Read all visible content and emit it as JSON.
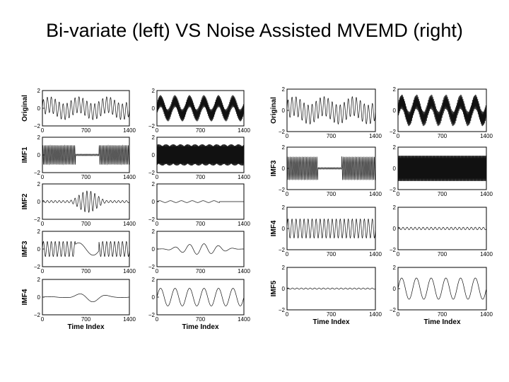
{
  "title": "Bi-variate (left) VS Noise Assisted MVEMD (right)",
  "colors": {
    "trace": "#111111",
    "axis": "#000000",
    "background": "#ffffff"
  },
  "chart_data": [
    {
      "type": "line",
      "name": "bivariate-emd",
      "xlabel": "Time Index",
      "xlim": [
        0,
        1400
      ],
      "ylim": [
        -2,
        2
      ],
      "xticks": [
        "0",
        "700",
        "1400"
      ],
      "yticks": [
        "2",
        "0",
        "−2"
      ],
      "grid": false,
      "rows": [
        {
          "label": "Original",
          "left": {
            "components": [
              {
                "amp": 0.9,
                "cycles": 22
              },
              {
                "amp": 0.4,
                "cycles": 3
              }
            ]
          },
          "right": {
            "components": [
              {
                "amp": 0.7,
                "cycles": 120
              },
              {
                "amp": 0.8,
                "cycles": 6
              }
            ]
          }
        },
        {
          "label": "IMF1",
          "left": {
            "components": [
              {
                "amp": 1.1,
                "cycles": 60,
                "window": [
                  0,
                  0.38
                ]
              },
              {
                "amp": 0.1,
                "cycles": 60,
                "window": [
                  0.38,
                  0.65
                ]
              },
              {
                "amp": 1.1,
                "cycles": 60,
                "window": [
                  0.65,
                  1
                ]
              }
            ]
          },
          "right": {
            "components": [
              {
                "amp": 1.2,
                "cycles": 150
              }
            ]
          }
        },
        {
          "label": "IMF2",
          "left": {
            "components": [
              {
                "amp": 1.1,
                "cycles": 22,
                "window": [
                  0.3,
                  0.75
                ],
                "taper": true
              },
              {
                "amp": 0.12,
                "cycles": 22
              }
            ]
          },
          "right": {
            "components": [
              {
                "amp": 0.1,
                "cycles": 8,
                "window": [
                  0,
                  0.72
                ]
              }
            ]
          }
        },
        {
          "label": "IMF3",
          "left": {
            "components": [
              {
                "amp": 0.85,
                "cycles": 22,
                "window": [
                  0,
                  0.38
                ]
              },
              {
                "amp": 0.7,
                "cycles": 3,
                "window": [
                  0.38,
                  0.65
                ]
              },
              {
                "amp": 0.85,
                "cycles": 22,
                "window": [
                  0.65,
                  1
                ]
              }
            ]
          },
          "right": {
            "components": [
              {
                "amp": 0.6,
                "cycles": 6,
                "taper": true
              }
            ]
          }
        },
        {
          "label": "IMF4",
          "left": {
            "components": [
              {
                "amp": 0.5,
                "cycles": 3,
                "window": [
                  0.25,
                  0.85
                ],
                "taper": true
              },
              {
                "amp": 0.05,
                "cycles": 3
              }
            ]
          },
          "right": {
            "components": [
              {
                "amp": 1.0,
                "cycles": 6
              }
            ]
          }
        }
      ]
    },
    {
      "type": "line",
      "name": "noise-assisted-mvemd",
      "xlabel": "Time Index",
      "xlim": [
        0,
        1400
      ],
      "ylim": [
        -2,
        2
      ],
      "xticks": [
        "0",
        "700",
        "1400"
      ],
      "yticks": [
        "2",
        "0",
        "−2"
      ],
      "grid": false,
      "rows": [
        {
          "label": "Original",
          "left": {
            "components": [
              {
                "amp": 0.9,
                "cycles": 22
              },
              {
                "amp": 0.4,
                "cycles": 3
              }
            ]
          },
          "right": {
            "components": [
              {
                "amp": 0.7,
                "cycles": 120
              },
              {
                "amp": 0.8,
                "cycles": 6
              }
            ]
          }
        },
        {
          "label": "IMF3",
          "left": {
            "components": [
              {
                "amp": 1.1,
                "cycles": 60,
                "window": [
                  0,
                  0.35
                ]
              },
              {
                "amp": 0.08,
                "cycles": 60,
                "window": [
                  0.35,
                  0.62
                ]
              },
              {
                "amp": 1.1,
                "cycles": 60,
                "window": [
                  0.62,
                  1
                ]
              }
            ]
          },
          "right": {
            "components": [
              {
                "amp": 1.25,
                "cycles": 150
              }
            ]
          }
        },
        {
          "label": "IMF4",
          "left": {
            "components": [
              {
                "amp": 0.9,
                "cycles": 22
              }
            ]
          },
          "right": {
            "components": [
              {
                "amp": 0.12,
                "cycles": 22
              }
            ]
          }
        },
        {
          "label": "IMF5",
          "left": {
            "components": [
              {
                "amp": 0.06,
                "cycles": 20
              }
            ]
          },
          "right": {
            "components": [
              {
                "amp": 1.0,
                "cycles": 6
              }
            ]
          }
        }
      ]
    }
  ]
}
